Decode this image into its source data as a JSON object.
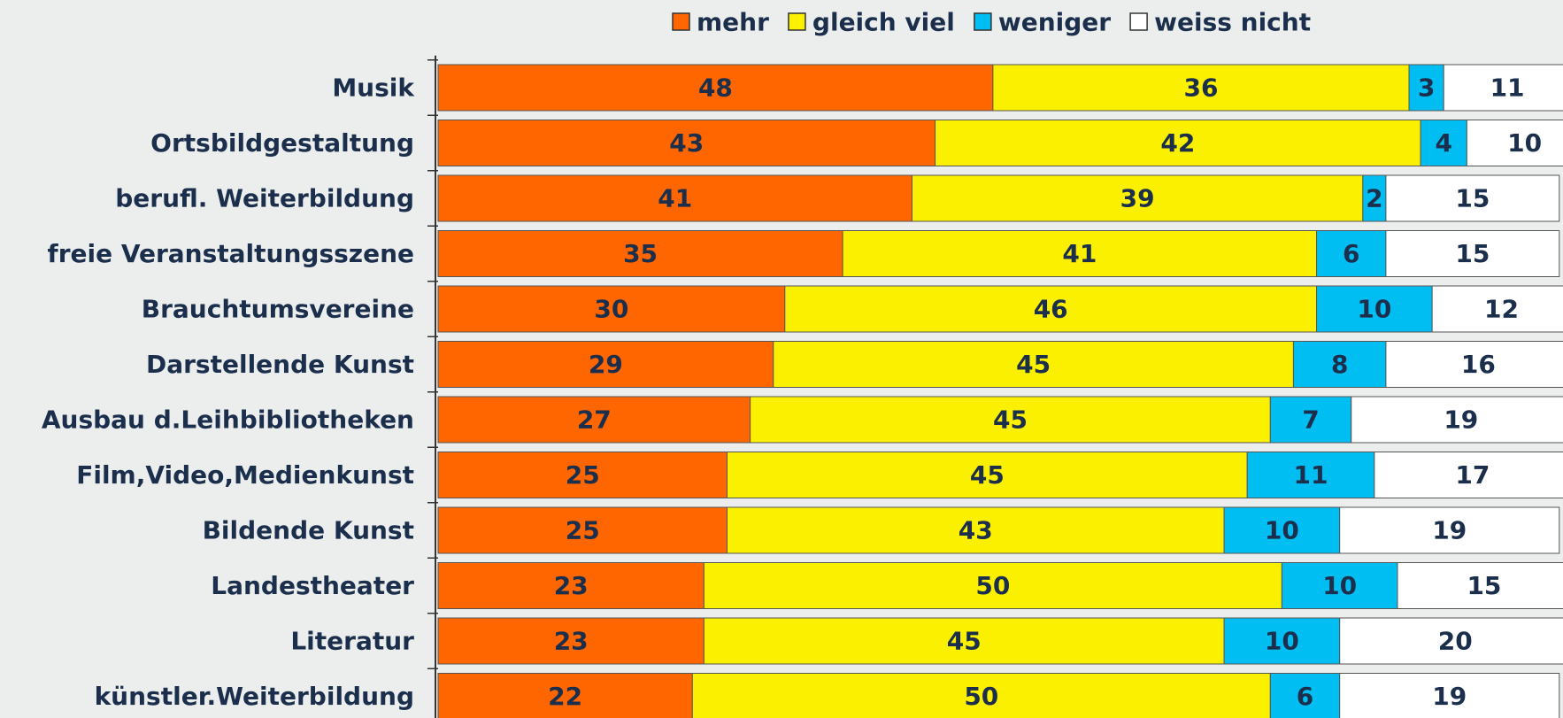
{
  "chart_data": {
    "type": "stacked-bar-horizontal",
    "categories": [
      "Musik",
      "Ortsbildgestaltung",
      "berufl. Weiterbildung",
      "freie Veranstaltungsszene",
      "Brauchtumsvereine",
      "Darstellende Kunst",
      "Ausbau d.Leihbibliotheken",
      "Film,Video,Medienkunst",
      "Bildende Kunst",
      "Landestheater",
      "Literatur",
      "künstler.Weiterbildung"
    ],
    "series": [
      {
        "name": "mehr",
        "color": "#ff6600",
        "values": [
          48,
          43,
          41,
          35,
          30,
          29,
          27,
          25,
          25,
          23,
          23,
          22
        ]
      },
      {
        "name": "gleich viel",
        "color": "#fbf000",
        "values": [
          36,
          42,
          39,
          41,
          46,
          45,
          45,
          45,
          43,
          50,
          45,
          50
        ]
      },
      {
        "name": "weniger",
        "color": "#00bef2",
        "values": [
          3,
          4,
          2,
          6,
          10,
          8,
          7,
          11,
          10,
          10,
          10,
          6
        ]
      },
      {
        "name": "weiss nicht",
        "color": "#ffffff",
        "values": [
          11,
          10,
          15,
          15,
          12,
          16,
          19,
          17,
          19,
          15,
          20,
          19
        ]
      }
    ],
    "xlim": [
      0,
      100
    ],
    "legend": "top"
  }
}
